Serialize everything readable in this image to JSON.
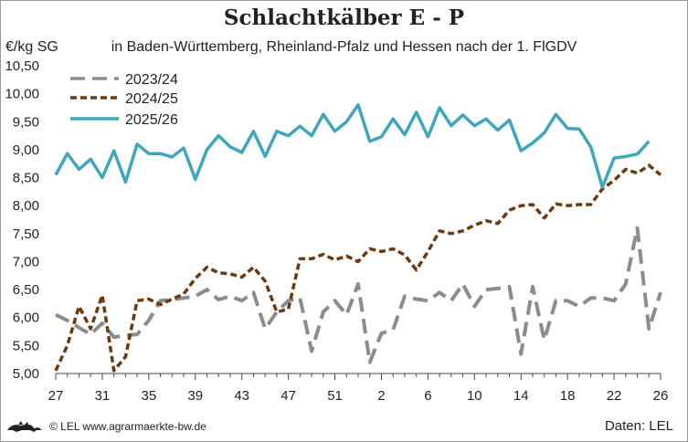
{
  "chart_data": {
    "type": "line",
    "title": "Schlachtkälber E - P",
    "subtitle": "in Baden-Württemberg, Rheinland-Pfalz und Hessen nach der 1. FlGDV",
    "ylabel": "€/kg SG",
    "ylim": [
      5.0,
      10.5
    ],
    "yticks": [
      "5,00",
      "5,50",
      "6,00",
      "6,50",
      "7,00",
      "7,50",
      "8,00",
      "8,50",
      "9,00",
      "9,50",
      "10,00",
      "10,50"
    ],
    "x_tick_labels": [
      "27",
      "31",
      "35",
      "39",
      "43",
      "47",
      "51",
      "2",
      "6",
      "10",
      "14",
      "18",
      "22",
      "26"
    ],
    "x_tick_positions": [
      0,
      4,
      8,
      12,
      16,
      20,
      24,
      28,
      32,
      36,
      40,
      44,
      48,
      52
    ],
    "x_count": 53,
    "x_note": "Kalenderwochen 27 bis 26 (x-Index 0 = KW 27)",
    "grid": false,
    "legend_position": "top-left",
    "series": [
      {
        "name": "2023/24",
        "color": "#8c8c8c",
        "style": "dashed",
        "values": [
          6.05,
          5.95,
          5.82,
          5.7,
          5.9,
          5.65,
          5.68,
          5.7,
          5.95,
          6.3,
          6.32,
          6.35,
          6.38,
          6.5,
          6.32,
          6.38,
          6.3,
          6.45,
          5.8,
          6.1,
          6.3,
          6.35,
          5.4,
          6.1,
          6.3,
          6.05,
          6.6,
          5.2,
          5.72,
          5.78,
          6.38,
          6.33,
          6.3,
          6.45,
          6.3,
          6.6,
          6.2,
          6.5,
          6.52,
          6.55,
          5.35,
          6.55,
          5.6,
          6.3,
          6.3,
          6.2,
          6.35,
          6.35,
          6.3,
          6.6,
          7.6,
          5.8,
          6.45
        ]
      },
      {
        "name": "2024/25",
        "color": "#6b3a10",
        "style": "dashed",
        "values": [
          5.05,
          5.5,
          6.2,
          5.8,
          6.4,
          5.05,
          5.3,
          6.3,
          6.33,
          6.23,
          6.33,
          6.42,
          6.7,
          6.9,
          6.8,
          6.78,
          6.72,
          6.9,
          6.65,
          6.1,
          6.15,
          7.05,
          7.05,
          7.13,
          7.03,
          7.1,
          7.0,
          7.23,
          7.18,
          7.23,
          7.12,
          6.85,
          7.18,
          7.55,
          7.5,
          7.55,
          7.65,
          7.73,
          7.68,
          7.92,
          8.0,
          8.02,
          7.78,
          8.03,
          8.0,
          8.02,
          8.02,
          8.3,
          8.45,
          8.65,
          8.58,
          8.72,
          8.55
        ]
      },
      {
        "name": "2025/26",
        "color": "#3fa6bb",
        "style": "solid",
        "values": [
          8.55,
          8.93,
          8.65,
          8.83,
          8.5,
          8.98,
          8.42,
          9.1,
          8.93,
          8.93,
          8.87,
          9.03,
          8.47,
          9.0,
          9.25,
          9.05,
          8.95,
          9.33,
          8.88,
          9.33,
          9.25,
          9.42,
          9.25,
          9.63,
          9.33,
          9.5,
          9.8,
          9.15,
          9.23,
          9.55,
          9.27,
          9.67,
          9.23,
          9.75,
          9.43,
          9.62,
          9.43,
          9.55,
          9.35,
          9.53,
          8.98,
          9.12,
          9.3,
          9.63,
          9.38,
          9.37,
          9.05,
          8.33,
          8.85,
          8.88,
          8.92,
          9.15
        ]
      }
    ]
  },
  "footer": {
    "copyright": "© LEL www.agrarmaerkte-bw.de",
    "source": "Daten:  LEL"
  }
}
